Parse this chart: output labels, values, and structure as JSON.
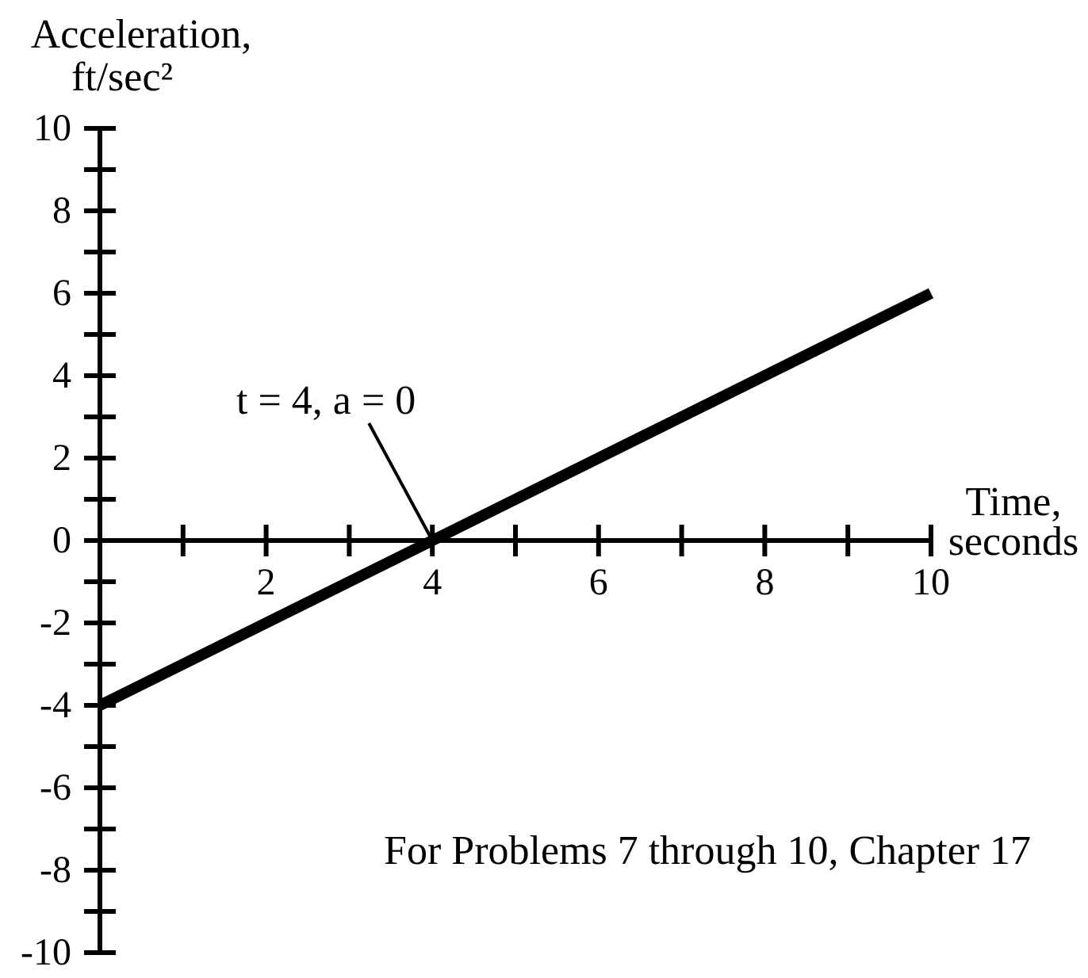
{
  "chart_data": {
    "type": "line",
    "xlabel": "Time, seconds",
    "ylabel": "Acceleration, ft/sec²",
    "annotations": [
      {
        "text": "t = 4, a = 0",
        "x": 4,
        "y": 0
      },
      "For Problems 7 through 10, Chapter 17"
    ],
    "x": [
      0,
      10
    ],
    "series": [
      {
        "color": "#000000",
        "values": [
          -4,
          6
        ]
      }
    ],
    "xlim": [
      0,
      10
    ],
    "ylim": [
      -10,
      10
    ],
    "xticks": [
      {
        "value": 1,
        "label": null
      },
      2,
      {
        "value": 3,
        "label": null
      },
      4,
      {
        "value": 5,
        "label": null
      },
      6,
      {
        "value": 7,
        "label": null
      },
      8,
      {
        "value": 9,
        "label": null
      },
      10
    ],
    "yticks": [
      -10,
      {
        "value": -9,
        "label": null
      },
      -8,
      {
        "value": -7,
        "label": null
      },
      -6,
      {
        "value": -5,
        "label": null
      },
      -4,
      {
        "value": -3,
        "label": null
      },
      -2,
      {
        "value": -1,
        "label": null
      },
      0,
      {
        "value": 1,
        "label": null
      },
      2,
      {
        "value": 3,
        "label": null
      },
      4,
      {
        "value": 5,
        "label": null
      },
      6,
      {
        "value": 7,
        "label": null
      },
      8,
      {
        "value": 9,
        "label": null
      },
      10
    ]
  }
}
